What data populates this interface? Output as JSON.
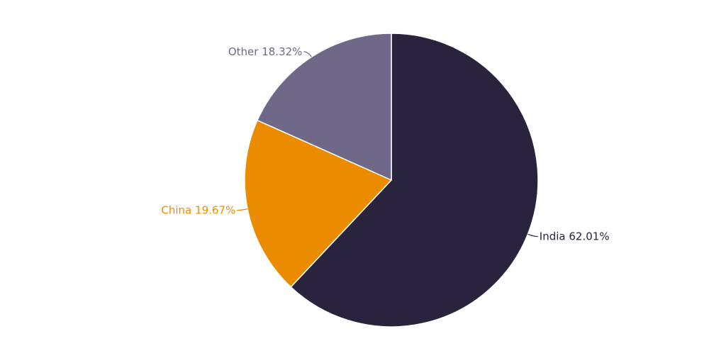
{
  "chart_data": {
    "type": "pie",
    "categories": [
      "India",
      "China",
      "Other"
    ],
    "values": [
      62.01,
      19.67,
      18.32
    ],
    "unit": "%",
    "colors": [
      "#29233d",
      "#eb8c00",
      "#6f6889"
    ],
    "slice_border_color": "#ffffff",
    "title": "",
    "legend": "none",
    "start_angle": "12 o'clock, clockwise",
    "labels": [
      "India 62.01%",
      "China 19.67%",
      "Other 18.32%"
    ]
  }
}
